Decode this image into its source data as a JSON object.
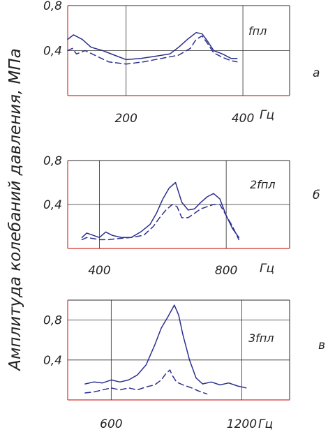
{
  "figure": {
    "ylabel": "Амплитуда колебаний давления,  МПа",
    "xunit": "Гц"
  },
  "colors": {
    "axis": "#d9534f",
    "grid": "#2b2b2b",
    "series": "#2b2f8f",
    "text": "#222222"
  },
  "chart_data": [
    {
      "type": "line",
      "panel_letter": "а",
      "annotation": "fпл",
      "xlabel": "Гц",
      "xlim": [
        100,
        480
      ],
      "ylim": [
        0,
        0.8
      ],
      "yticks": [
        0.4,
        0.8
      ],
      "ytick_labels": [
        "0,4",
        "0,8"
      ],
      "xticks": [
        200,
        400
      ],
      "xtick_labels": [
        "200",
        "400"
      ],
      "series": [
        {
          "style": "solid",
          "x": [
            100,
            110,
            125,
            140,
            160,
            180,
            200,
            225,
            250,
            275,
            290,
            305,
            320,
            330,
            340,
            350,
            365,
            380,
            390
          ],
          "y": [
            0.5,
            0.54,
            0.5,
            0.43,
            0.4,
            0.36,
            0.32,
            0.33,
            0.35,
            0.37,
            0.43,
            0.5,
            0.56,
            0.55,
            0.48,
            0.4,
            0.37,
            0.33,
            0.33
          ]
        },
        {
          "style": "dashed",
          "x": [
            100,
            108,
            115,
            130,
            150,
            170,
            200,
            230,
            260,
            290,
            310,
            320,
            330,
            340,
            350,
            365,
            380,
            390
          ],
          "y": [
            0.4,
            0.42,
            0.37,
            0.4,
            0.35,
            0.3,
            0.28,
            0.3,
            0.33,
            0.36,
            0.42,
            0.5,
            0.53,
            0.46,
            0.38,
            0.34,
            0.31,
            0.3
          ]
        }
      ]
    },
    {
      "type": "line",
      "panel_letter": "б",
      "annotation": "2fпл",
      "xlabel": "Гц",
      "xlim": [
        300,
        1000
      ],
      "ylim": [
        0,
        0.8
      ],
      "yticks": [
        0.4,
        0.8
      ],
      "ytick_labels": [
        "0,4",
        "0,8"
      ],
      "xticks": [
        400,
        800
      ],
      "xtick_labels": [
        "400",
        "800"
      ],
      "series": [
        {
          "style": "solid",
          "x": [
            345,
            360,
            380,
            400,
            420,
            440,
            470,
            500,
            530,
            560,
            580,
            600,
            620,
            640,
            660,
            680,
            700,
            720,
            740,
            760,
            780,
            800,
            820,
            840
          ],
          "y": [
            0.1,
            0.14,
            0.12,
            0.1,
            0.15,
            0.12,
            0.1,
            0.1,
            0.15,
            0.22,
            0.32,
            0.45,
            0.55,
            0.6,
            0.42,
            0.35,
            0.36,
            0.42,
            0.47,
            0.5,
            0.45,
            0.3,
            0.18,
            0.1
          ]
        },
        {
          "style": "dashed",
          "x": [
            345,
            360,
            380,
            400,
            430,
            460,
            500,
            540,
            570,
            590,
            610,
            630,
            645,
            660,
            680,
            700,
            720,
            740,
            760,
            780,
            800,
            820,
            840
          ],
          "y": [
            0.08,
            0.1,
            0.09,
            0.08,
            0.08,
            0.09,
            0.1,
            0.12,
            0.2,
            0.28,
            0.35,
            0.4,
            0.38,
            0.28,
            0.28,
            0.32,
            0.36,
            0.38,
            0.4,
            0.4,
            0.3,
            0.2,
            0.08
          ]
        }
      ]
    },
    {
      "type": "line",
      "panel_letter": "в",
      "annotation": "3fпл",
      "xlabel": "Гц",
      "xlim": [
        400,
        1420
      ],
      "ylim": [
        0,
        1.0
      ],
      "yticks": [
        0.4,
        0.8
      ],
      "ytick_labels": [
        "0,4",
        "0,8"
      ],
      "xticks": [
        600,
        1200
      ],
      "xtick_labels": [
        "600",
        "1200"
      ],
      "series": [
        {
          "style": "solid",
          "x": [
            480,
            520,
            560,
            600,
            640,
            680,
            720,
            760,
            800,
            830,
            860,
            890,
            910,
            930,
            960,
            990,
            1020,
            1060,
            1100,
            1140,
            1180,
            1220
          ],
          "y": [
            0.16,
            0.18,
            0.17,
            0.2,
            0.18,
            0.2,
            0.25,
            0.35,
            0.55,
            0.72,
            0.83,
            0.95,
            0.85,
            0.65,
            0.4,
            0.22,
            0.16,
            0.18,
            0.15,
            0.17,
            0.14,
            0.12
          ]
        },
        {
          "style": "dashed",
          "x": [
            480,
            520,
            560,
            600,
            640,
            680,
            720,
            760,
            800,
            830,
            850,
            870,
            880,
            900,
            930,
            970,
            1000,
            1040
          ],
          "y": [
            0.07,
            0.08,
            0.1,
            0.12,
            0.1,
            0.12,
            0.1,
            0.13,
            0.15,
            0.2,
            0.26,
            0.3,
            0.25,
            0.18,
            0.15,
            0.12,
            0.09,
            0.06
          ]
        }
      ]
    }
  ]
}
